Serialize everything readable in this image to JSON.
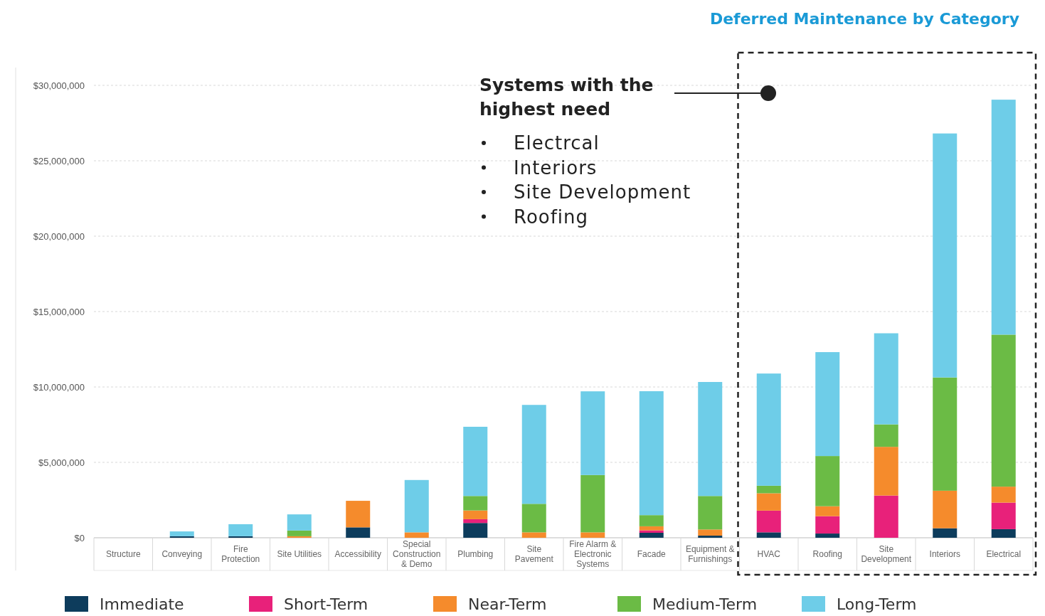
{
  "chart_data": {
    "type": "bar",
    "title": "Deferred Maintenance by Category",
    "stacked": true,
    "categories": [
      "Structure",
      "Conveying",
      "Fire Protection",
      "Site Utilities",
      "Accessibility",
      "Special Construction & Demo",
      "Plumbing",
      "Site Pavement",
      "Fire Alarm & Electronic Systems",
      "Facade",
      "Equipment & Furnishings",
      "HVAC",
      "Roofing",
      "Site Development",
      "Interiors",
      "Electrical"
    ],
    "series": [
      {
        "name": "Immediate",
        "color": "#0d3c5c",
        "values": [
          0,
          100000,
          100000,
          0,
          690000,
          0,
          980000,
          0,
          0,
          330000,
          140000,
          360000,
          280000,
          0,
          630000,
          570000
        ]
      },
      {
        "name": "Short-Term",
        "color": "#e8217a",
        "values": [
          0,
          0,
          0,
          0,
          0,
          0,
          250000,
          0,
          0,
          160000,
          0,
          1440000,
          1150000,
          2800000,
          0,
          1760000
        ]
      },
      {
        "name": "Near-Term",
        "color": "#f58b2c",
        "values": [
          0,
          0,
          0,
          100000,
          1760000,
          360000,
          580000,
          360000,
          360000,
          270000,
          410000,
          1150000,
          660000,
          3230000,
          2490000,
          1060000
        ]
      },
      {
        "name": "Medium-Term",
        "color": "#6bbb45",
        "values": [
          0,
          0,
          0,
          380000,
          0,
          0,
          960000,
          1890000,
          3800000,
          740000,
          2220000,
          500000,
          3330000,
          1490000,
          7510000,
          10080000
        ]
      },
      {
        "name": "Long-Term",
        "color": "#6ecde8",
        "values": [
          0,
          320000,
          800000,
          1070000,
          0,
          3470000,
          4590000,
          6560000,
          5550000,
          8220000,
          7560000,
          7440000,
          6890000,
          6040000,
          16180000,
          15580000
        ]
      }
    ],
    "ylim": [
      0,
      30000000
    ],
    "yticks": [
      {
        "value": 0,
        "label": "$0"
      },
      {
        "value": 5000000,
        "label": "$5,000,000"
      },
      {
        "value": 10000000,
        "label": "$10,000,000"
      },
      {
        "value": 15000000,
        "label": "$15,000,000"
      },
      {
        "value": 20000000,
        "label": "$20,000,000"
      },
      {
        "value": 25000000,
        "label": "$25,000,000"
      },
      {
        "value": 30000000,
        "label": "$30,000,000"
      }
    ],
    "grid": "y",
    "legend": "bottom",
    "annotations": [
      "Systems with the highest need",
      "Electrcal",
      "Interiors",
      "Site Development",
      "Roofing"
    ]
  }
}
